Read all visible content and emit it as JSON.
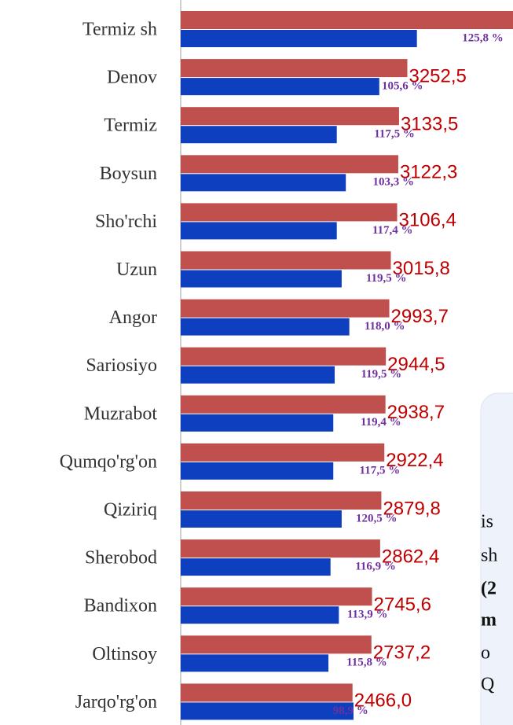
{
  "chart_data": {
    "type": "bar",
    "orientation": "horizontal",
    "categories": [
      "Termiz sh",
      "Denov",
      "Termiz",
      "Boysun",
      "Sho'rchi",
      "Uzun",
      "Angor",
      "Sariosiyo",
      "Muzrabot",
      "Qumqo'rg'on",
      "Qiziriq",
      "Sherobod",
      "Bandixon",
      "Oltinsoy",
      "Jarqo'rg'on"
    ],
    "series": [
      {
        "color": "#c0504d",
        "values": [
          4800,
          3252.5,
          3133.5,
          3122.3,
          3106.4,
          3015.8,
          2993.7,
          2944.5,
          2938.7,
          2922.4,
          2879.8,
          2862.4,
          2745.6,
          2737.2,
          2466.0
        ],
        "value_labels": [
          null,
          "3252,5",
          "3133,5",
          "3122,3",
          "3106,4",
          "3015,8",
          "2993,7",
          "2944,5",
          "2938,7",
          "2922,4",
          "2879,8",
          "2862,4",
          "2745,6",
          "2737,2",
          "2466,0"
        ]
      },
      {
        "color": "#0d3fbf",
        "values": [
          3390,
          2850,
          2240,
          2370,
          2240,
          2310,
          2420,
          2210,
          2190,
          2190,
          2310,
          2150,
          2270,
          2120,
          2480
        ]
      }
    ],
    "annotations": [
      "125,8 %",
      "105,6 %",
      "117,5 %",
      "103,3 %",
      "117,4 %",
      "119,5 %",
      "118,0 %",
      "119,5 %",
      "119,4 %",
      "117,5 %",
      "120,5 %",
      "116,9 %",
      "113,9 %",
      "115,8 %",
      "98,9 %"
    ]
  },
  "overlay": {
    "lines": [
      "is",
      "sh",
      "(2",
      "m",
      "o",
      "Q"
    ]
  }
}
